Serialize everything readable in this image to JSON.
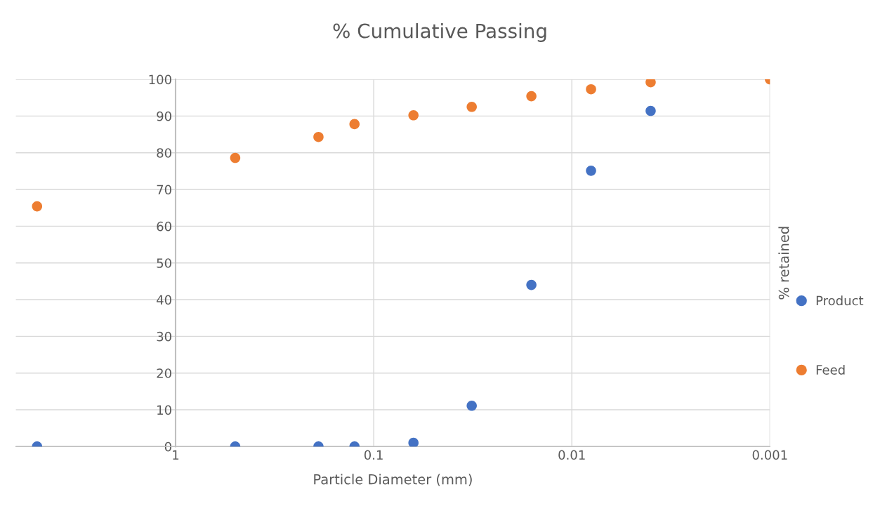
{
  "chart_data": {
    "type": "scatter",
    "title": "% Cumulative Passing",
    "xlabel": "Particle Diameter (mm)",
    "y2label": "% retained",
    "x": [
      5,
      0.5,
      0.19,
      0.125,
      0.063,
      0.032,
      0.016,
      0.008,
      0.004,
      0.001
    ],
    "series": [
      {
        "name": "Product",
        "color": "#4472c4",
        "values": [
          0,
          0,
          0,
          0,
          1.0,
          11.1,
          44.0,
          75.1,
          91.4,
          null
        ]
      },
      {
        "name": "Feed",
        "color": "#ed7d31",
        "values": [
          65.4,
          78.6,
          84.3,
          87.8,
          90.2,
          92.5,
          95.4,
          97.3,
          99.2,
          100
        ]
      }
    ],
    "log": "x",
    "xlim": [
      6.4,
      0.001
    ],
    "xticks": [
      1,
      0.1,
      0.01,
      0.001
    ],
    "ylim": [
      0,
      100
    ],
    "yticks": [
      0,
      10,
      20,
      30,
      40,
      50,
      60,
      70,
      80,
      90,
      100
    ],
    "grid": true,
    "legend": "right",
    "marker": "circle"
  }
}
